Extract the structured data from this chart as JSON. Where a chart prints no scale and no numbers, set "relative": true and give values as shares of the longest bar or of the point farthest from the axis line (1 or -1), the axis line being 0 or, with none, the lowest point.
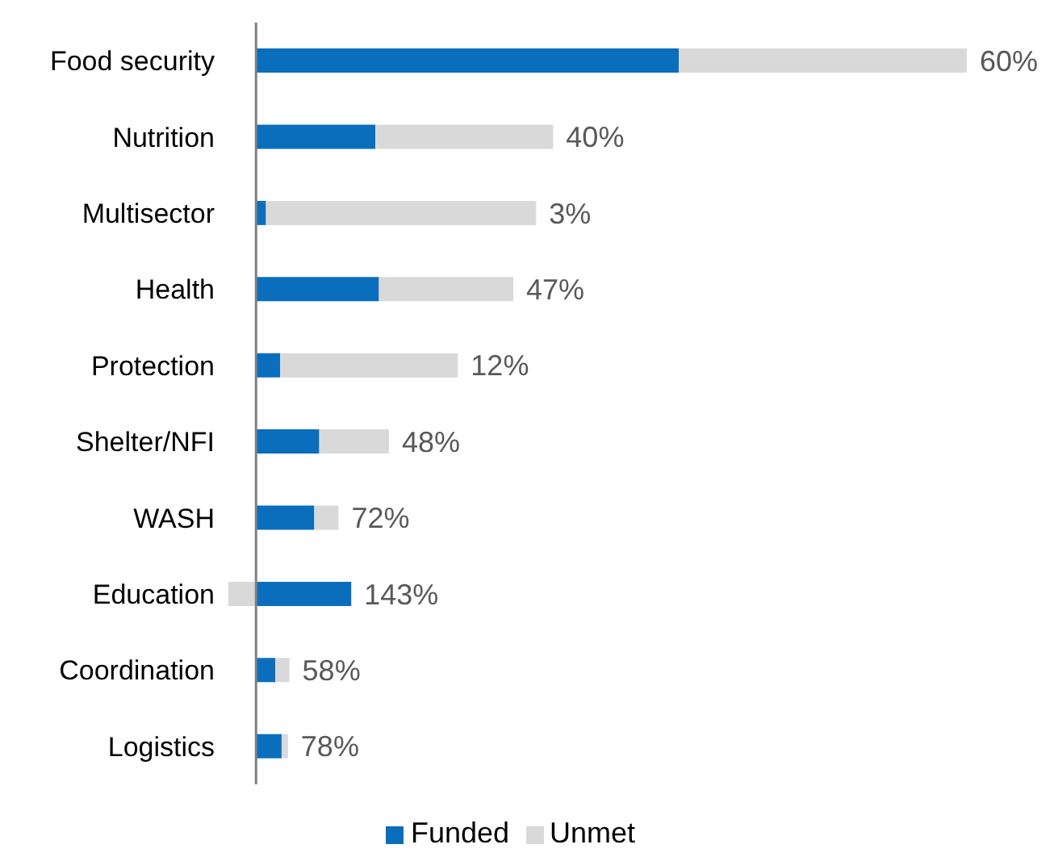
{
  "chart_data": {
    "type": "bar",
    "orientation": "horizontal",
    "stacked": true,
    "relative": true,
    "categories": [
      "Food security",
      "Nutrition",
      "Multisector",
      "Health",
      "Protection",
      "Shelter/NFI",
      "WASH",
      "Education",
      "Coordination",
      "Logistics"
    ],
    "series": [
      {
        "name": "Funded",
        "color": "#0a6ebd",
        "values": [
          0.595,
          0.168,
          0.014,
          0.173,
          0.034,
          0.089,
          0.082,
          0.134,
          0.027,
          0.036
        ]
      },
      {
        "name": "Unmet",
        "color": "#d9d9d9",
        "values": [
          0.405,
          0.25,
          0.38,
          0.189,
          0.25,
          0.098,
          0.034,
          -0.039,
          0.02,
          0.009
        ]
      }
    ],
    "annotations": [
      {
        "text": "60%",
        "x": 1.0,
        "y": "Food security"
      },
      {
        "text": "40%",
        "x": 0.418,
        "y": "Nutrition"
      },
      {
        "text": "3%",
        "x": 0.394,
        "y": "Multisector"
      },
      {
        "text": "47%",
        "x": 0.362,
        "y": "Health"
      },
      {
        "text": "12%",
        "x": 0.284,
        "y": "Protection"
      },
      {
        "text": "48%",
        "x": 0.187,
        "y": "Shelter/NFI"
      },
      {
        "text": "72%",
        "x": 0.116,
        "y": "WASH"
      },
      {
        "text": "143%",
        "x": 0.134,
        "y": "Education"
      },
      {
        "text": "58%",
        "x": 0.047,
        "y": "Coordination"
      },
      {
        "text": "78%",
        "x": 0.045,
        "y": "Logistics"
      }
    ],
    "legend": "bottom"
  }
}
